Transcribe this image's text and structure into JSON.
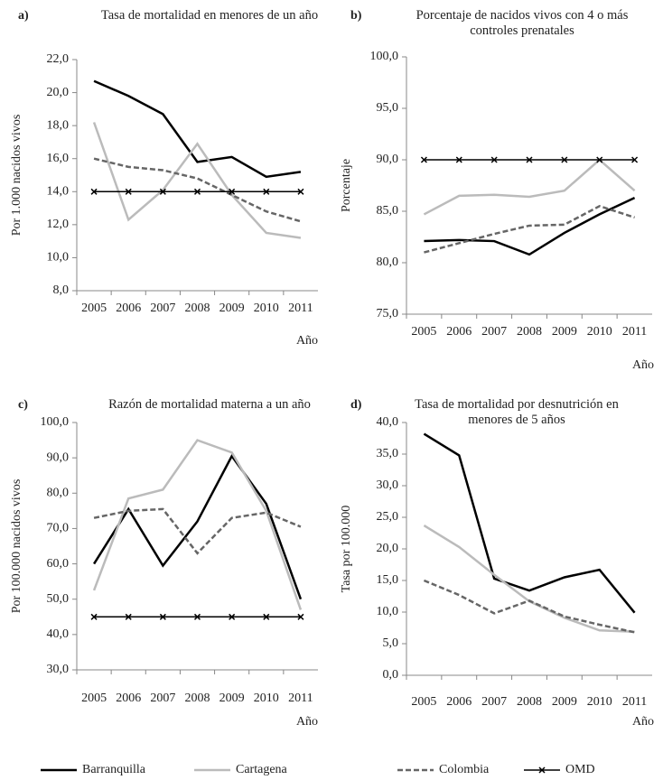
{
  "chart_data": [
    {
      "type": "line",
      "label": "a)",
      "title": "Tasa de mortalidad en menores de un año",
      "ylabel": "Por 1.000 nacidos vivos",
      "xlabel": "Año",
      "categories": [
        "2005",
        "2006",
        "2007",
        "2008",
        "2009",
        "2010",
        "2011"
      ],
      "ylim": [
        8,
        22
      ],
      "yticks": [
        {
          "value": 8,
          "label": "8,0"
        },
        {
          "value": 10,
          "label": "10,0"
        },
        {
          "value": 12,
          "label": "12,0"
        },
        {
          "value": 14,
          "label": "14,0"
        },
        {
          "value": 16,
          "label": "16,0"
        },
        {
          "value": 18,
          "label": "18,0"
        },
        {
          "value": 20,
          "label": "20,0"
        },
        {
          "value": 22,
          "label": "22,0"
        }
      ],
      "series": [
        {
          "name": "Barranquilla",
          "color": "#000000",
          "values": [
            20.7,
            19.8,
            18.7,
            15.8,
            16.1,
            14.9,
            15.2
          ]
        },
        {
          "name": "Cartagena",
          "color": "#bbbbbb",
          "values": [
            18.2,
            12.3,
            14.1,
            16.9,
            13.8,
            11.5,
            11.2
          ]
        },
        {
          "name": "Colombia",
          "color": "#666666",
          "dashed": true,
          "values": [
            16.0,
            15.5,
            15.3,
            14.8,
            13.8,
            12.8,
            12.2
          ]
        },
        {
          "name": "OMD",
          "color": "#000000",
          "marker": "x",
          "values": [
            14,
            14,
            14,
            14,
            14,
            14,
            14
          ]
        }
      ]
    },
    {
      "type": "line",
      "label": "b)",
      "title": "Porcentaje de nacidos vivos con 4 o más controles prenatales",
      "ylabel": "Porcentaje",
      "xlabel": "Año",
      "categories": [
        "2005",
        "2006",
        "2007",
        "2008",
        "2009",
        "2010",
        "2011"
      ],
      "ylim": [
        75,
        100
      ],
      "yticks": [
        {
          "value": 75,
          "label": "75,0"
        },
        {
          "value": 80,
          "label": "80,0"
        },
        {
          "value": 85,
          "label": "85,0"
        },
        {
          "value": 90,
          "label": "90,0"
        },
        {
          "value": 95,
          "label": "95,0"
        },
        {
          "value": 100,
          "label": "100,0"
        }
      ],
      "series": [
        {
          "name": "Barranquilla",
          "color": "#000000",
          "values": [
            82.1,
            82.2,
            82.1,
            80.8,
            82.9,
            84.7,
            86.3
          ]
        },
        {
          "name": "Cartagena",
          "color": "#bbbbbb",
          "values": [
            84.7,
            86.5,
            86.6,
            86.4,
            87.0,
            90.0,
            87.0
          ]
        },
        {
          "name": "Colombia",
          "color": "#666666",
          "dashed": true,
          "values": [
            81.0,
            81.9,
            82.8,
            83.6,
            83.7,
            85.5,
            84.4
          ]
        },
        {
          "name": "OMD",
          "color": "#000000",
          "marker": "x",
          "values": [
            90,
            90,
            90,
            90,
            90,
            90,
            90
          ]
        }
      ]
    },
    {
      "type": "line",
      "label": "c)",
      "title": "Razón de mortalidad materna a un año",
      "ylabel": "Por 100.000 nacidos vivos",
      "xlabel": "Año",
      "categories": [
        "2005",
        "2006",
        "2007",
        "2008",
        "2009",
        "2010",
        "2011"
      ],
      "ylim": [
        30,
        100
      ],
      "yticks": [
        {
          "value": 30,
          "label": "30,0"
        },
        {
          "value": 40,
          "label": "40,0"
        },
        {
          "value": 50,
          "label": "50,0"
        },
        {
          "value": 60,
          "label": "60,0"
        },
        {
          "value": 70,
          "label": "70,0"
        },
        {
          "value": 80,
          "label": "80,0"
        },
        {
          "value": 90,
          "label": "90,0"
        },
        {
          "value": 100,
          "label": "100,0"
        }
      ],
      "series": [
        {
          "name": "Barranquilla",
          "color": "#000000",
          "values": [
            60,
            75.5,
            59.5,
            72,
            90.5,
            77,
            50
          ]
        },
        {
          "name": "Cartagena",
          "color": "#bbbbbb",
          "values": [
            52.5,
            78.5,
            81,
            95,
            91.5,
            75,
            47
          ]
        },
        {
          "name": "Colombia",
          "color": "#666666",
          "dashed": true,
          "values": [
            73,
            75,
            75.5,
            63,
            73,
            74.5,
            70.5
          ]
        },
        {
          "name": "OMD",
          "color": "#000000",
          "marker": "x",
          "values": [
            45,
            45,
            45,
            45,
            45,
            45,
            45
          ]
        }
      ]
    },
    {
      "type": "line",
      "label": "d)",
      "title": "Tasa de mortalidad por desnutrición en menores de 5 años",
      "ylabel": "Tasa por 100.000",
      "xlabel": "Año",
      "categories": [
        "2005",
        "2006",
        "2007",
        "2008",
        "2009",
        "2010",
        "2011"
      ],
      "ylim": [
        0,
        40
      ],
      "yticks": [
        {
          "value": 0,
          "label": "0,0"
        },
        {
          "value": 5,
          "label": "5,0"
        },
        {
          "value": 10,
          "label": "10,0"
        },
        {
          "value": 15,
          "label": "15,0"
        },
        {
          "value": 20,
          "label": "20,0"
        },
        {
          "value": 25,
          "label": "25,0"
        },
        {
          "value": 30,
          "label": "30,0"
        },
        {
          "value": 35,
          "label": "35,0"
        },
        {
          "value": 40,
          "label": "40,0"
        }
      ],
      "series": [
        {
          "name": "Barranquilla",
          "color": "#000000",
          "values": [
            38.2,
            34.8,
            15.3,
            13.4,
            15.5,
            16.7,
            9.9
          ]
        },
        {
          "name": "Cartagena",
          "color": "#bbbbbb",
          "values": [
            23.7,
            20.3,
            15.9,
            11.7,
            9.1,
            7.1,
            6.9
          ]
        },
        {
          "name": "Colombia",
          "color": "#666666",
          "dashed": true,
          "values": [
            15.0,
            12.7,
            9.8,
            11.8,
            9.3,
            8.0,
            6.8
          ]
        }
      ]
    }
  ]
}
